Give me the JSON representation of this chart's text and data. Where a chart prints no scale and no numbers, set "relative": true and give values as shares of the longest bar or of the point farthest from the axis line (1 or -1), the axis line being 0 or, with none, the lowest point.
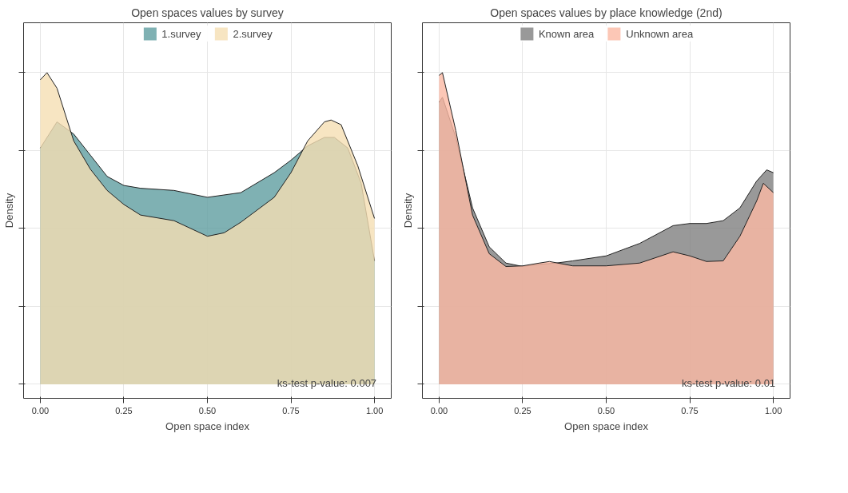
{
  "chart_data": [
    {
      "type": "area",
      "title": "Open spaces values by survey",
      "xlabel": "Open space index",
      "ylabel": "Density",
      "relative": true,
      "xlim": [
        -0.05,
        1.05
      ],
      "xticks": [
        {
          "value": 0,
          "label": "0.00"
        },
        {
          "value": 0.25,
          "label": "0.25"
        },
        {
          "value": 0.5,
          "label": "0.50"
        },
        {
          "value": 0.75,
          "label": "0.75"
        },
        {
          "value": 1,
          "label": "1.00"
        }
      ],
      "grid": true,
      "legend": "top",
      "tick_labels": "x",
      "annotations": [
        "ks-test p-value: 0.007"
      ],
      "series": [
        {
          "name": "1.survey",
          "color": "#5f9ea0",
          "x": [
            0,
            0.05,
            0.1,
            0.15,
            0.2,
            0.25,
            0.3,
            0.4,
            0.5,
            0.6,
            0.7,
            0.75,
            0.8,
            0.85,
            0.88,
            0.92,
            0.96,
            1.0
          ],
          "values": [
            0.758,
            0.842,
            0.803,
            0.735,
            0.667,
            0.638,
            0.629,
            0.622,
            0.6,
            0.615,
            0.679,
            0.719,
            0.765,
            0.792,
            0.792,
            0.758,
            0.645,
            0.396
          ]
        },
        {
          "name": "2.survey",
          "color": "#f5deb3",
          "x": [
            0,
            0.02,
            0.05,
            0.1,
            0.15,
            0.2,
            0.25,
            0.3,
            0.4,
            0.5,
            0.55,
            0.6,
            0.7,
            0.75,
            0.8,
            0.85,
            0.87,
            0.9,
            0.95,
            1.0
          ],
          "values": [
            0.977,
            1.0,
            0.95,
            0.781,
            0.69,
            0.622,
            0.577,
            0.543,
            0.525,
            0.475,
            0.486,
            0.52,
            0.6,
            0.679,
            0.781,
            0.842,
            0.848,
            0.833,
            0.701,
            0.532
          ]
        }
      ]
    },
    {
      "type": "area",
      "title": "Open spaces values by place knowledge (2nd)",
      "xlabel": "Open space index",
      "ylabel": "Density",
      "relative": true,
      "xlim": [
        -0.05,
        1.05
      ],
      "xticks": [
        {
          "value": 0,
          "label": "0.00"
        },
        {
          "value": 0.25,
          "label": "0.25"
        },
        {
          "value": 0.5,
          "label": "0.50"
        },
        {
          "value": 0.75,
          "label": "0.75"
        },
        {
          "value": 1,
          "label": "1.00"
        }
      ],
      "grid": true,
      "legend": "top",
      "tick_labels": "x",
      "annotations": [
        "ks-test p-value: 0.01"
      ],
      "series": [
        {
          "name": "Known area",
          "color": "#808080",
          "x": [
            0,
            0.01,
            0.05,
            0.1,
            0.15,
            0.2,
            0.25,
            0.3,
            0.35,
            0.4,
            0.5,
            0.6,
            0.7,
            0.75,
            0.8,
            0.85,
            0.9,
            0.95,
            0.98,
            1.0
          ],
          "values": [
            0.905,
            0.921,
            0.792,
            0.566,
            0.441,
            0.389,
            0.378,
            0.385,
            0.389,
            0.396,
            0.412,
            0.452,
            0.509,
            0.516,
            0.516,
            0.525,
            0.566,
            0.652,
            0.688,
            0.679
          ]
        },
        {
          "name": "Unknown area",
          "color": "#fbb9a4",
          "x": [
            0,
            0.01,
            0.05,
            0.1,
            0.15,
            0.2,
            0.25,
            0.3,
            0.33,
            0.4,
            0.5,
            0.6,
            0.7,
            0.75,
            0.8,
            0.85,
            0.9,
            0.95,
            0.97,
            1.0
          ],
          "values": [
            0.991,
            1.0,
            0.814,
            0.543,
            0.419,
            0.378,
            0.38,
            0.389,
            0.394,
            0.38,
            0.38,
            0.389,
            0.425,
            0.412,
            0.394,
            0.396,
            0.475,
            0.588,
            0.645,
            0.615
          ]
        }
      ]
    }
  ]
}
